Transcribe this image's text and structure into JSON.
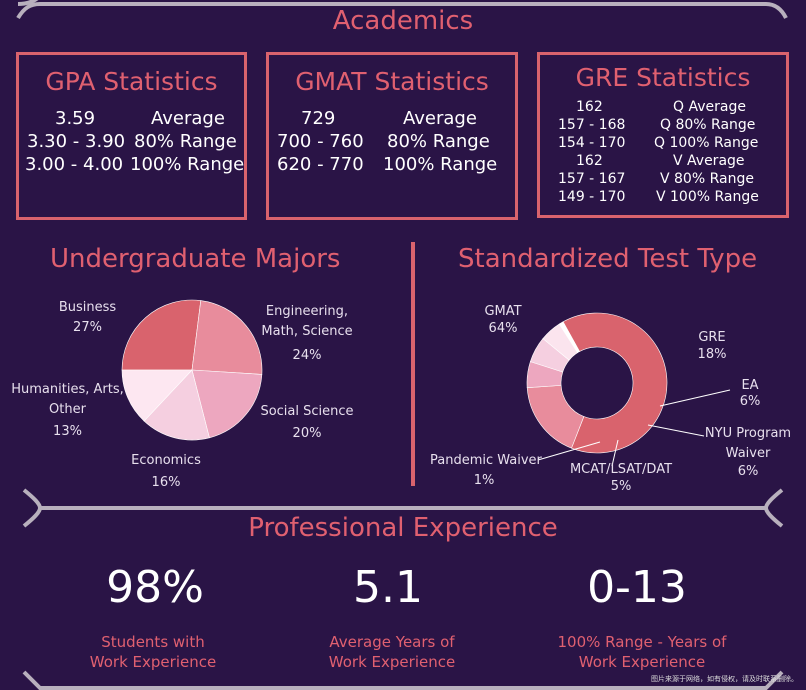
{
  "academics": {
    "title": "Academics",
    "gpa": {
      "title": "GPA Statistics",
      "rows": [
        {
          "value": "3.59",
          "label": "Average"
        },
        {
          "value": "3.30 - 3.90",
          "label": "80% Range"
        },
        {
          "value": "3.00 - 4.00",
          "label": "100% Range"
        }
      ]
    },
    "gmat": {
      "title": "GMAT Statistics",
      "rows": [
        {
          "value": "729",
          "label": "Average"
        },
        {
          "value": "700 - 760",
          "label": "80% Range"
        },
        {
          "value": "620 - 770",
          "label": "100% Range"
        }
      ]
    },
    "gre": {
      "title": "GRE Statistics",
      "rows": [
        {
          "value": "162",
          "label": "Q Average"
        },
        {
          "value": "157 - 168",
          "label": "Q 80% Range"
        },
        {
          "value": "154 - 170",
          "label": "Q 100% Range"
        },
        {
          "value": "162",
          "label": "V Average"
        },
        {
          "value": "157 - 167",
          "label": "V 80% Range"
        },
        {
          "value": "149 - 170",
          "label": "V 100% Range"
        }
      ]
    }
  },
  "chart_data": [
    {
      "type": "pie",
      "title": "Undergraduate Majors",
      "categories": [
        "Business",
        "Engineering, Math, Science",
        "Social Science",
        "Economics",
        "Humanities, Arts, Other"
      ],
      "values": [
        27,
        24,
        20,
        16,
        13
      ],
      "value_labels": [
        "27%",
        "24%",
        "20%",
        "16%",
        "13%"
      ],
      "colors": [
        "#d9636d",
        "#e88c9c",
        "#eda7bf",
        "#f5cfe0",
        "#fde7f1"
      ]
    },
    {
      "type": "pie",
      "title": "Standardized Test Type",
      "categories": [
        "GMAT",
        "GRE",
        "EA",
        "NYU Program Waiver",
        "MCAT/LSAT/DAT",
        "Pandemic Waiver"
      ],
      "values": [
        64,
        18,
        6,
        6,
        5,
        1
      ],
      "value_labels": [
        "64%",
        "18%",
        "6%",
        "6%",
        "5%",
        "1%"
      ],
      "colors": [
        "#d9636d",
        "#e88c9c",
        "#eda7bf",
        "#f5cfe0",
        "#fbe4ee",
        "#ffffff"
      ]
    }
  ],
  "professional": {
    "title": "Professional Experience",
    "stats": [
      {
        "value": "98%",
        "caption1": "Students with",
        "caption2": "Work Experience"
      },
      {
        "value": "5.1",
        "caption1": "Average Years of",
        "caption2": "Work Experience"
      },
      {
        "value": "0-13",
        "caption1": "100% Range - Years of",
        "caption2": "Work Experience"
      }
    ]
  },
  "watermark": "图片来源于网络，如有侵权，请及时联系删除。"
}
